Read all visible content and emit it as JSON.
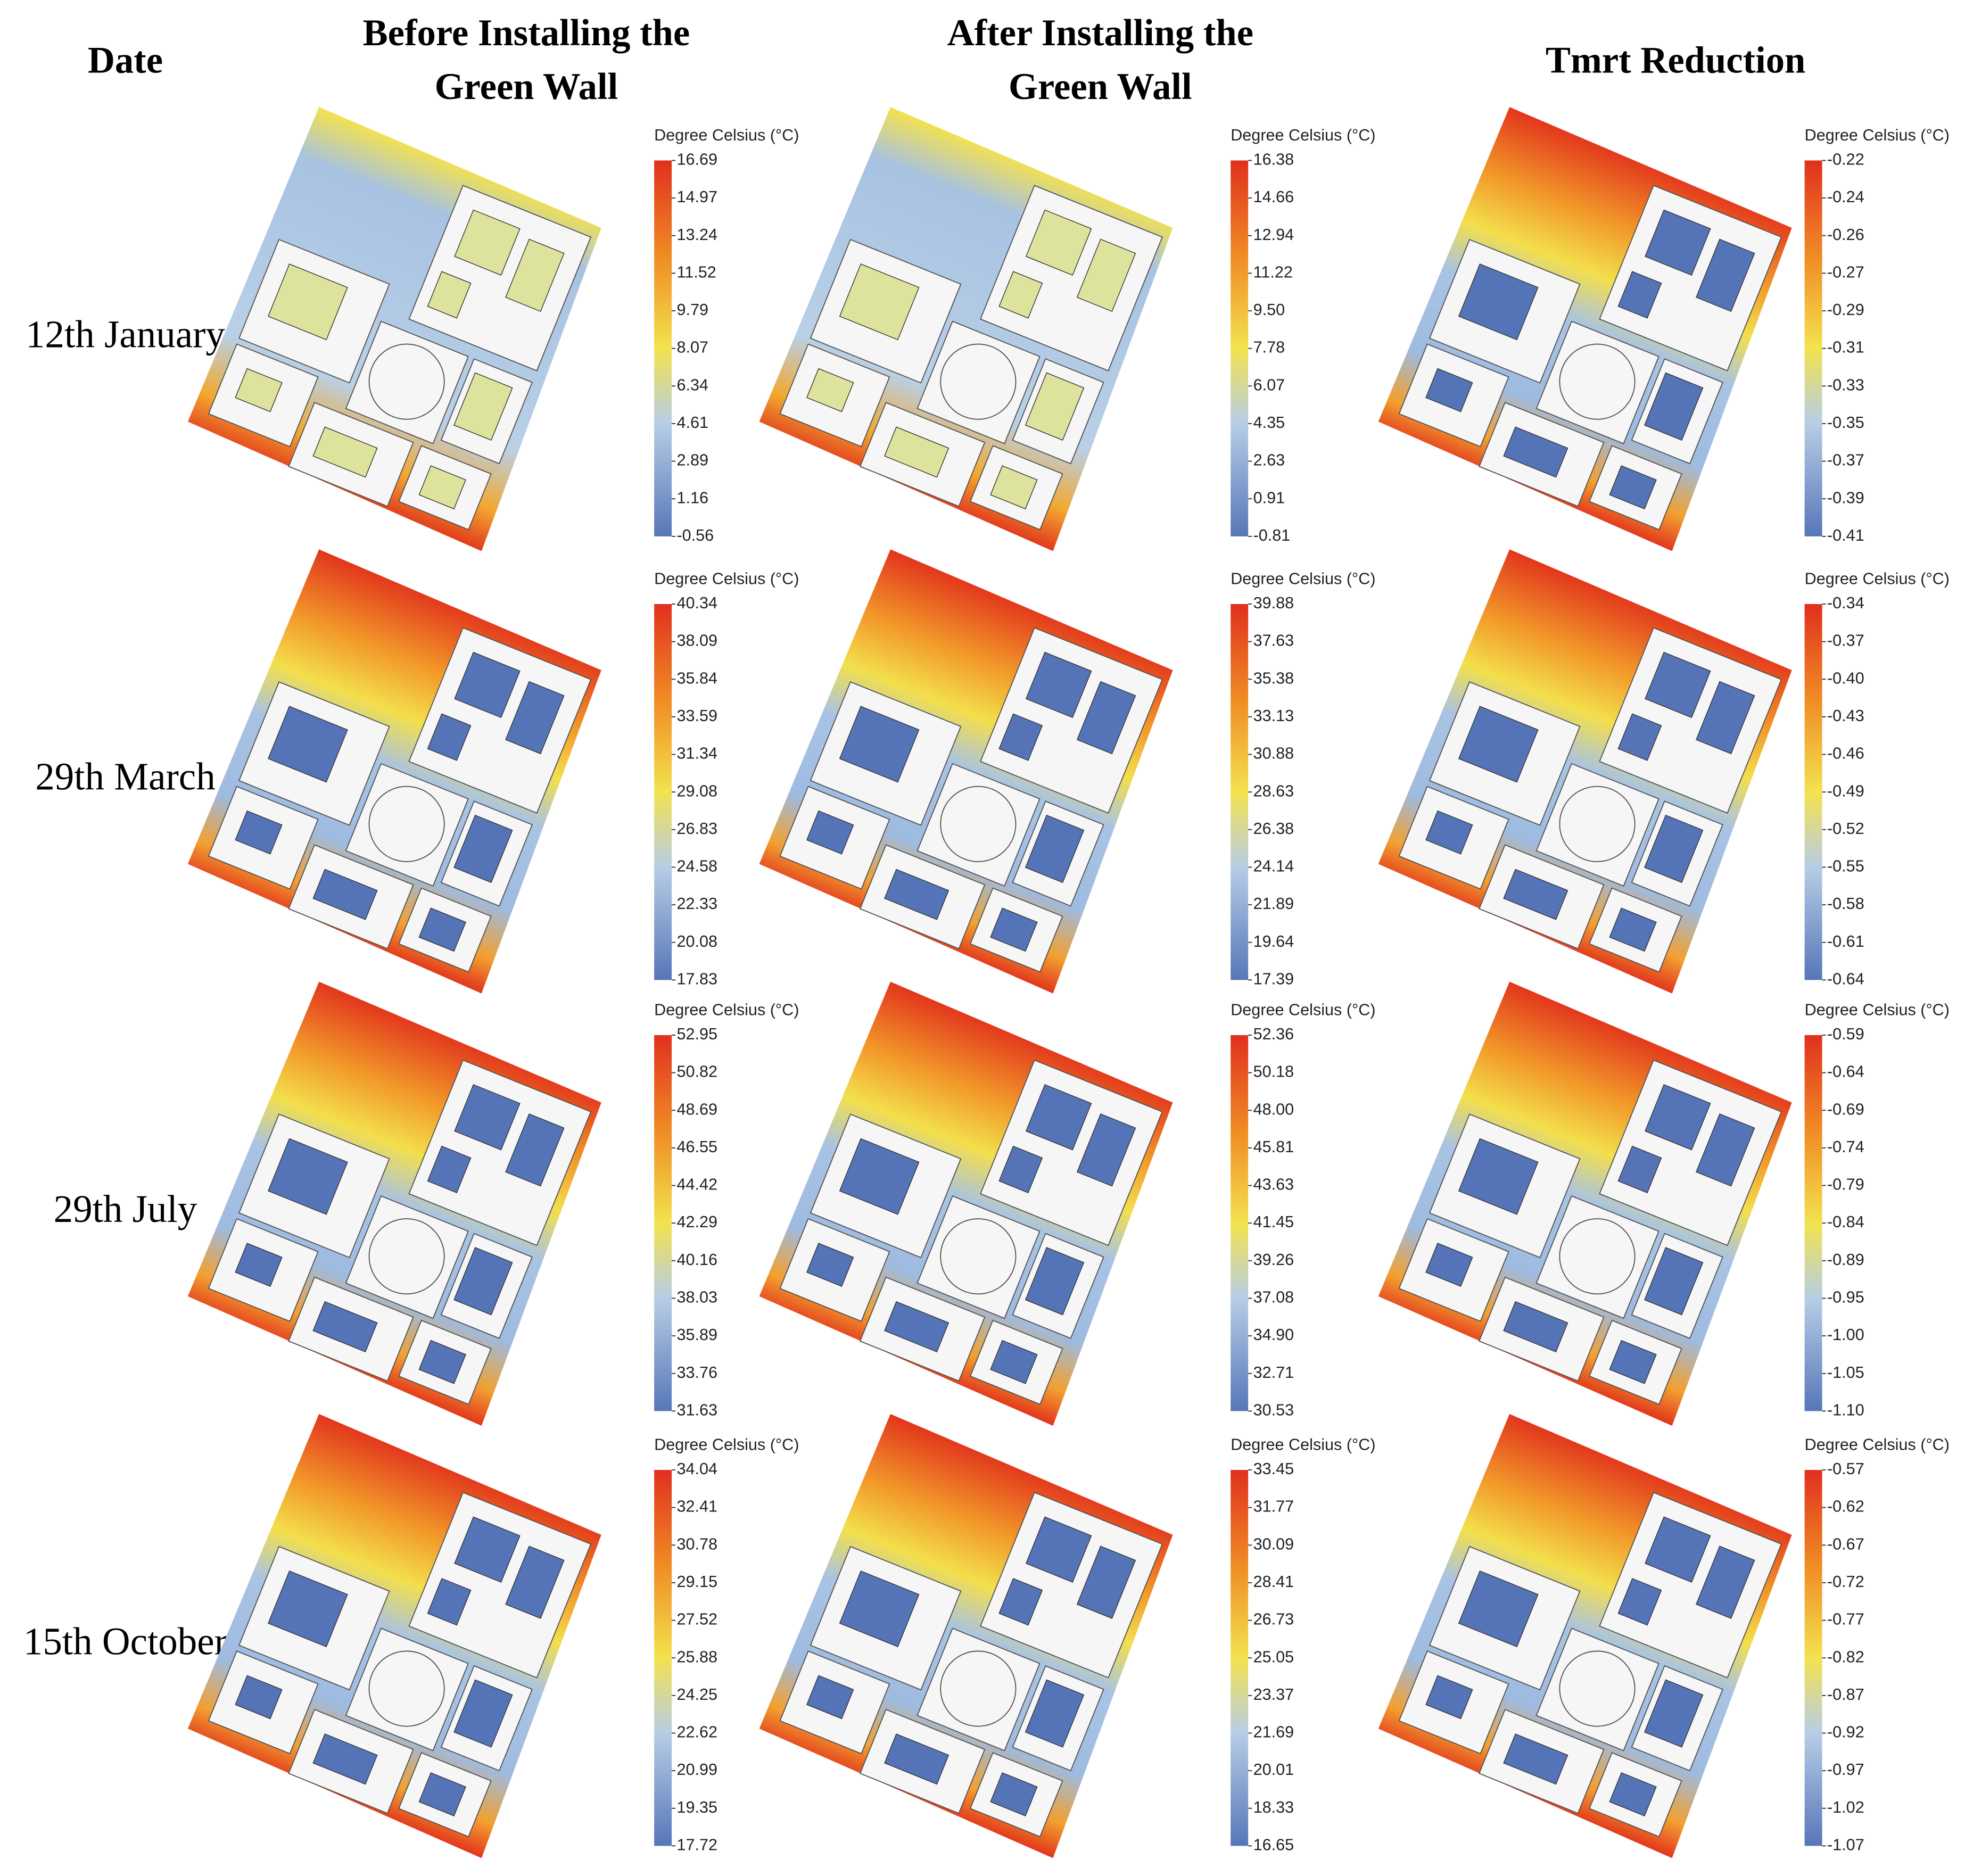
{
  "header": {
    "date": "Date",
    "columns": [
      [
        "Before Installing the",
        "Green Wall"
      ],
      [
        "After Installing the",
        "Green Wall"
      ],
      [
        "Tmrt Reduction"
      ]
    ]
  },
  "rows": [
    {
      "date": "12th January",
      "panels": [
        {
          "legend_title": "Degree Celsius (°C)",
          "ticks": [
            "16.69",
            "14.97",
            "13.24",
            "11.52",
            "9.79",
            "8.07",
            "6.34",
            "4.61",
            "2.89",
            "1.16",
            "-0.56"
          ]
        },
        {
          "legend_title": "Degree Celsius (°C)",
          "ticks": [
            "16.38",
            "14.66",
            "12.94",
            "11.22",
            "9.50",
            "7.78",
            "6.07",
            "4.35",
            "2.63",
            "0.91",
            "-0.81"
          ]
        },
        {
          "legend_title": "Degree Celsius (°C)",
          "ticks": [
            "-0.22",
            "-0.24",
            "-0.26",
            "-0.27",
            "-0.29",
            "-0.31",
            "-0.33",
            "-0.35",
            "-0.37",
            "-0.39",
            "-0.41"
          ]
        }
      ]
    },
    {
      "date": "29th March",
      "panels": [
        {
          "legend_title": "Degree Celsius (°C)",
          "ticks": [
            "40.34",
            "38.09",
            "35.84",
            "33.59",
            "31.34",
            "29.08",
            "26.83",
            "24.58",
            "22.33",
            "20.08",
            "17.83"
          ]
        },
        {
          "legend_title": "Degree Celsius (°C)",
          "ticks": [
            "39.88",
            "37.63",
            "35.38",
            "33.13",
            "30.88",
            "28.63",
            "26.38",
            "24.14",
            "21.89",
            "19.64",
            "17.39"
          ]
        },
        {
          "legend_title": "Degree Celsius (°C)",
          "ticks": [
            "-0.34",
            "-0.37",
            "-0.40",
            "-0.43",
            "-0.46",
            "-0.49",
            "-0.52",
            "-0.55",
            "-0.58",
            "-0.61",
            "-0.64"
          ]
        }
      ]
    },
    {
      "date": "29th July",
      "panels": [
        {
          "legend_title": "Degree Celsius (°C)",
          "ticks": [
            "52.95",
            "50.82",
            "48.69",
            "46.55",
            "44.42",
            "42.29",
            "40.16",
            "38.03",
            "35.89",
            "33.76",
            "31.63"
          ]
        },
        {
          "legend_title": "Degree Celsius (°C)",
          "ticks": [
            "52.36",
            "50.18",
            "48.00",
            "45.81",
            "43.63",
            "41.45",
            "39.26",
            "37.08",
            "34.90",
            "32.71",
            "30.53"
          ]
        },
        {
          "legend_title": "Degree Celsius (°C)",
          "ticks": [
            "-0.59",
            "-0.64",
            "-0.69",
            "-0.74",
            "-0.79",
            "-0.84",
            "-0.89",
            "-0.95",
            "-1.00",
            "-1.05",
            "-1.10"
          ]
        }
      ]
    },
    {
      "date": "15th October",
      "panels": [
        {
          "legend_title": "Degree Celsius (°C)",
          "ticks": [
            "34.04",
            "32.41",
            "30.78",
            "29.15",
            "27.52",
            "25.88",
            "24.25",
            "22.62",
            "20.99",
            "19.35",
            "17.72"
          ]
        },
        {
          "legend_title": "Degree Celsius (°C)",
          "ticks": [
            "33.45",
            "31.77",
            "30.09",
            "28.41",
            "26.73",
            "25.05",
            "23.37",
            "21.69",
            "20.01",
            "18.33",
            "16.65"
          ]
        },
        {
          "legend_title": "Degree Celsius (°C)",
          "ticks": [
            "-0.57",
            "-0.62",
            "-0.67",
            "-0.72",
            "-0.77",
            "-0.82",
            "-0.87",
            "-0.92",
            "-0.97",
            "-1.02",
            "-1.07"
          ]
        }
      ]
    }
  ]
}
